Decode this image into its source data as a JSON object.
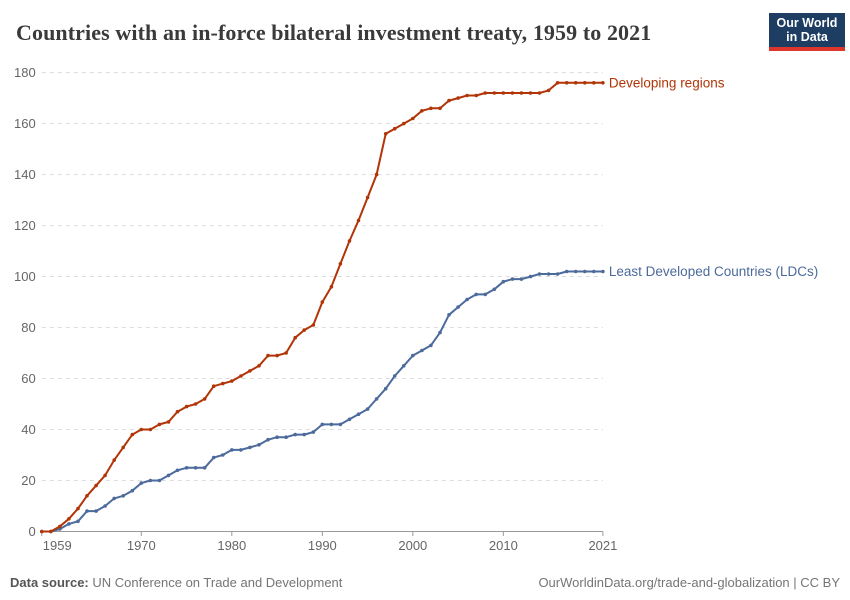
{
  "header": {
    "title": "Countries with an in-force bilateral investment treaty, 1959 to 2021",
    "logo": {
      "line1": "Our World",
      "line2": "in Data",
      "bg_color": "#1d3d63",
      "stripe_color": "#dc352b",
      "text_color": "#ffffff"
    }
  },
  "footer": {
    "source_label": "Data source:",
    "source_text": " UN Conference on Trade and Development",
    "right_text": "OurWorldinData.org/trade-and-globalization | CC BY"
  },
  "chart_data": {
    "type": "line",
    "title": "Countries with an in-force bilateral investment treaty, 1959 to 2021",
    "xlabel": "",
    "ylabel": "",
    "xlim": [
      1959,
      2021
    ],
    "ylim": [
      0,
      180
    ],
    "x_ticks": [
      1959,
      1970,
      1980,
      1990,
      2000,
      2010,
      2021
    ],
    "y_ticks": [
      0,
      20,
      40,
      60,
      80,
      100,
      120,
      140,
      160,
      180
    ],
    "grid": "horizontal-dashed",
    "legend_position": "line-end-labels",
    "x": [
      1959,
      1960,
      1961,
      1962,
      1963,
      1964,
      1965,
      1966,
      1967,
      1968,
      1969,
      1970,
      1971,
      1972,
      1973,
      1974,
      1975,
      1976,
      1977,
      1978,
      1979,
      1980,
      1981,
      1982,
      1983,
      1984,
      1985,
      1986,
      1987,
      1988,
      1989,
      1990,
      1991,
      1992,
      1993,
      1994,
      1995,
      1996,
      1997,
      1998,
      1999,
      2000,
      2001,
      2002,
      2003,
      2004,
      2005,
      2006,
      2007,
      2008,
      2009,
      2010,
      2011,
      2012,
      2013,
      2014,
      2015,
      2016,
      2017,
      2018,
      2019,
      2020,
      2021
    ],
    "series": [
      {
        "name": "Developing regions",
        "color": "#b13507",
        "values": [
          0,
          0,
          2,
          5,
          9,
          14,
          18,
          22,
          28,
          33,
          38,
          40,
          40,
          42,
          43,
          47,
          49,
          50,
          52,
          57,
          58,
          59,
          61,
          63,
          65,
          69,
          69,
          70,
          76,
          79,
          81,
          90,
          96,
          105,
          114,
          122,
          131,
          140,
          156,
          158,
          160,
          162,
          165,
          166,
          166,
          169,
          170,
          171,
          171,
          172,
          172,
          172,
          172,
          172,
          172,
          172,
          173,
          176,
          176,
          176,
          176,
          176,
          176
        ]
      },
      {
        "name": "Least Developed Countries (LDCs)",
        "color": "#4c6a9c",
        "values": [
          0,
          0,
          1,
          3,
          4,
          8,
          8,
          10,
          13,
          14,
          16,
          19,
          20,
          20,
          22,
          24,
          25,
          25,
          25,
          29,
          30,
          32,
          32,
          33,
          34,
          36,
          37,
          37,
          38,
          38,
          39,
          42,
          42,
          42,
          44,
          46,
          48,
          52,
          56,
          61,
          65,
          69,
          71,
          73,
          78,
          85,
          88,
          91,
          93,
          93,
          95,
          98,
          99,
          99,
          100,
          101,
          101,
          101,
          102,
          102,
          102,
          102,
          102
        ]
      }
    ],
    "axis_color": "#9b9b9b",
    "grid_color": "#dcdcdc",
    "tick_label_color": "#666666"
  }
}
